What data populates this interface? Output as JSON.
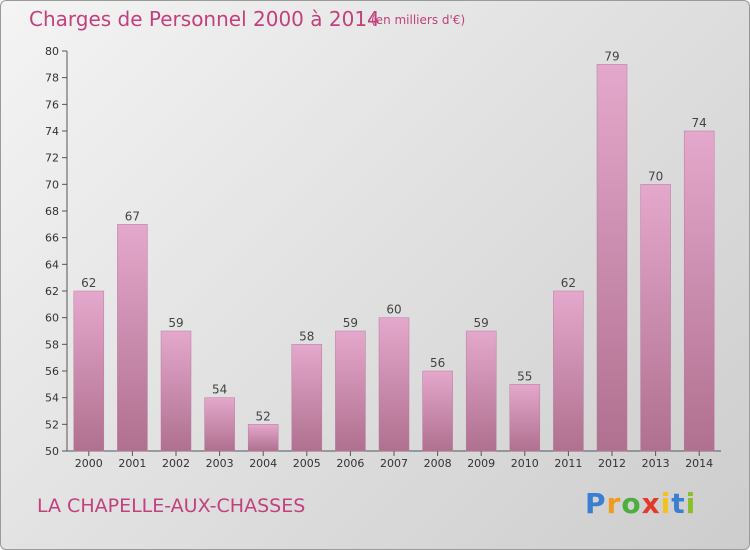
{
  "chart_data": {
    "type": "bar",
    "title": "Charges de Personnel 2000 à 2014",
    "subtitle": "(en milliers d'€)",
    "categories": [
      "2000",
      "2001",
      "2002",
      "2003",
      "2004",
      "2005",
      "2006",
      "2007",
      "2008",
      "2009",
      "2010",
      "2011",
      "2012",
      "2013",
      "2014"
    ],
    "values": [
      62,
      67,
      59,
      54,
      52,
      58,
      59,
      60,
      56,
      59,
      55,
      62,
      79,
      70,
      74
    ],
    "ylim": [
      50,
      80
    ],
    "yticks": [
      50,
      52,
      54,
      56,
      58,
      60,
      62,
      64,
      66,
      68,
      70,
      72,
      74,
      76,
      78,
      80
    ],
    "grid": false,
    "bar_color_top": "#e4a8cc",
    "bar_color_bottom": "#b0708f"
  },
  "commune": "LA CHAPELLE-AUX-CHASSES",
  "logo": {
    "letters": [
      "P",
      "r",
      "o",
      "x",
      "i",
      "t",
      "i"
    ],
    "colors": [
      "#3a7fd1",
      "#f29a1d",
      "#4cae3c",
      "#e23a2a",
      "#f2c21d",
      "#3a7fd1",
      "#8bbf2a"
    ]
  }
}
